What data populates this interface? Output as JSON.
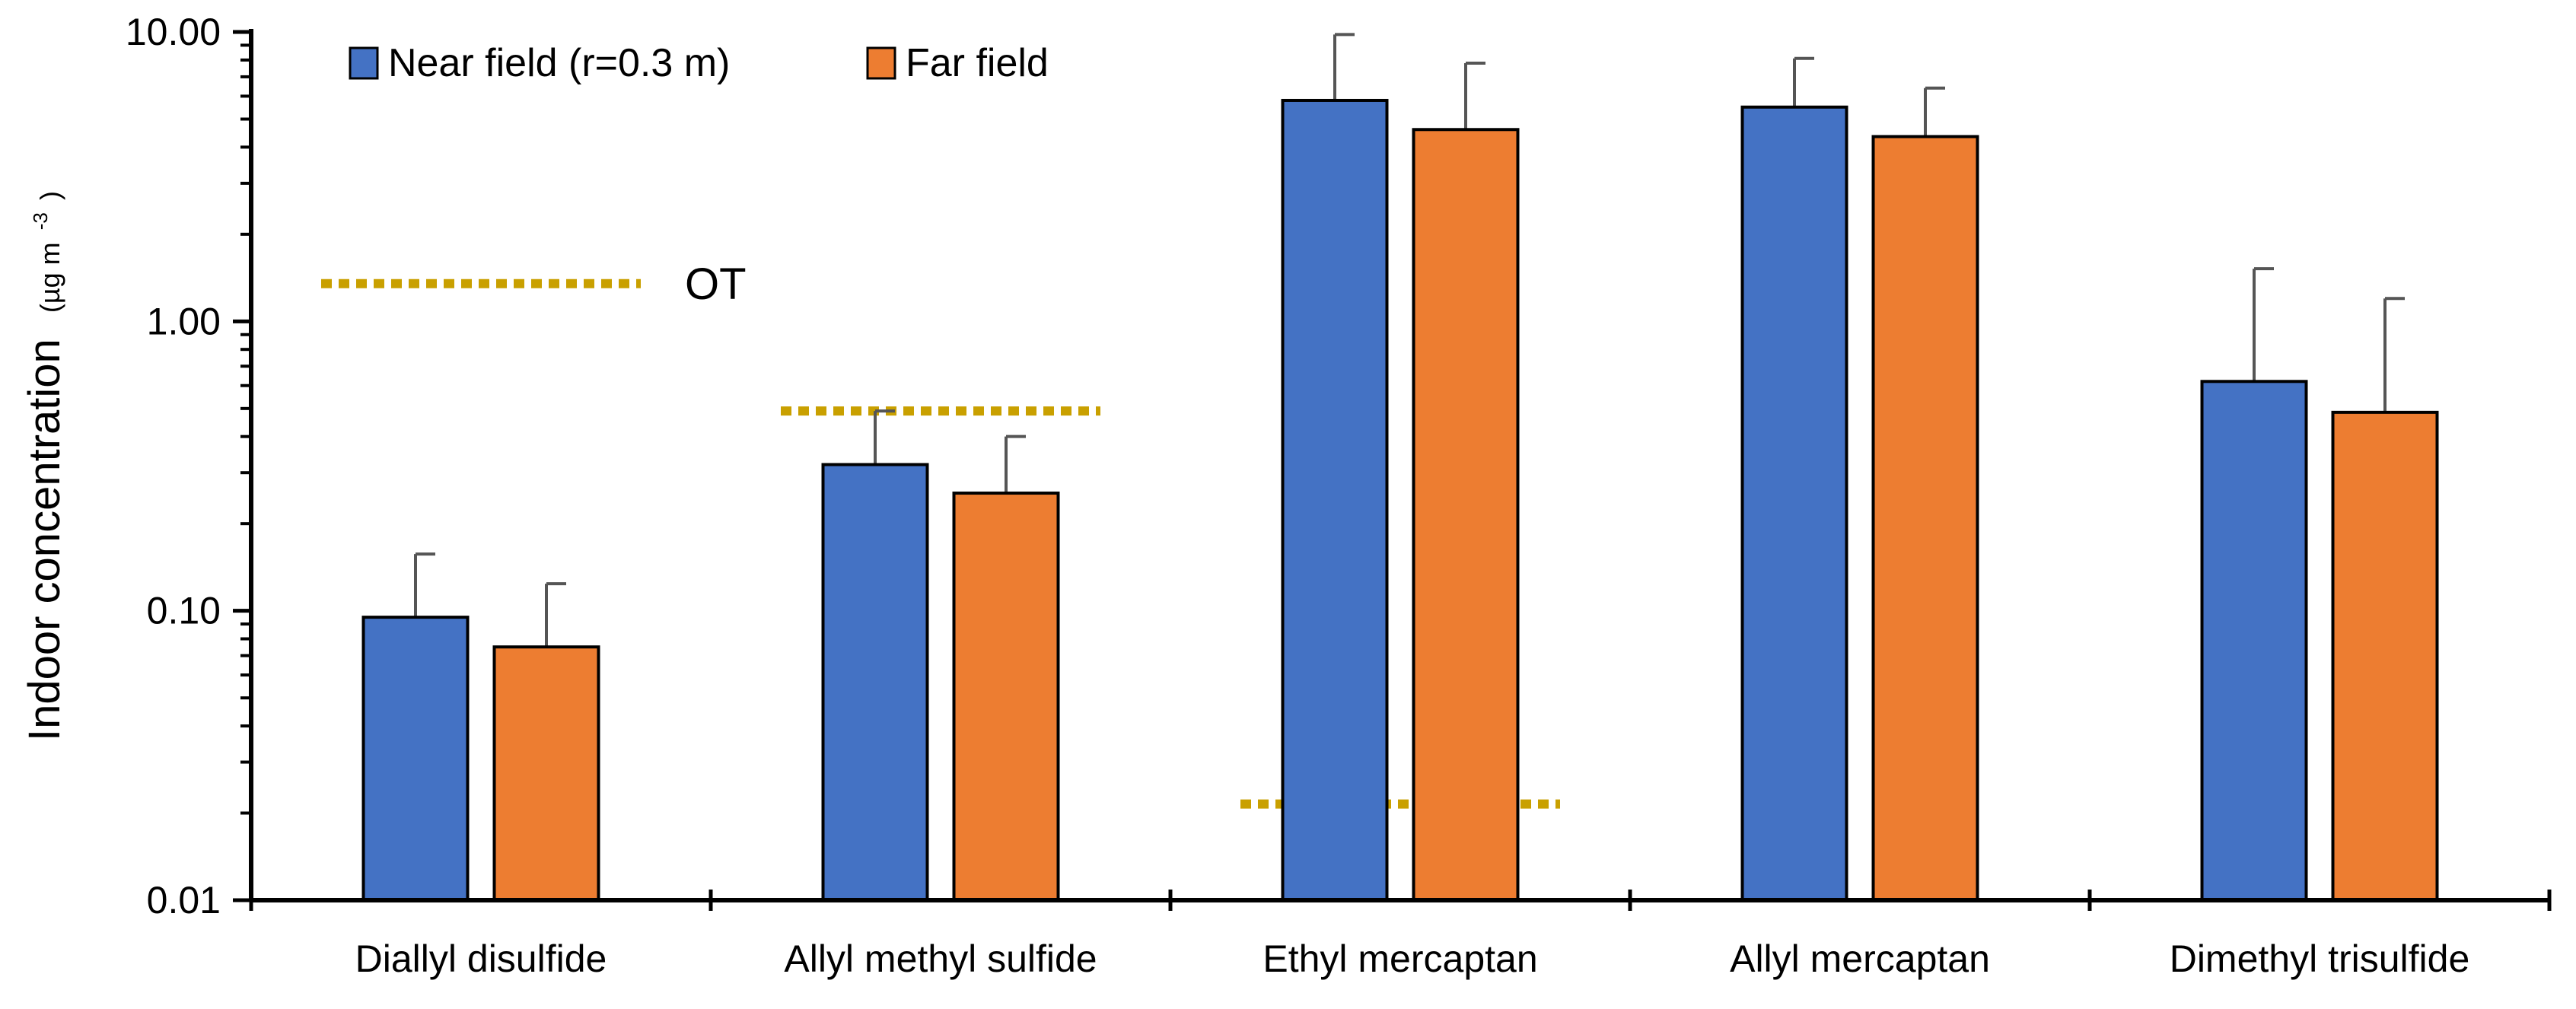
{
  "chart_data": {
    "type": "bar",
    "yscale": "log",
    "ylim": [
      0.01,
      10
    ],
    "yticks": [
      "0.01",
      "0.10",
      "1.00",
      "10.00"
    ],
    "ylabel": "Indoor concentration",
    "ylabel_unit_prefix": "(µg m",
    "ylabel_unit_sup": "-3",
    "ylabel_unit_suffix": ")",
    "xlabel": "",
    "categories": [
      "Diallyl disulfide",
      "Allyl methyl sulfide",
      "Ethyl mercaptan",
      "Allyl mercaptan",
      "Dimethyl trisulfide"
    ],
    "series": [
      {
        "name": "Near field (r=0.3 m)",
        "color": "#4472C4",
        "values": [
          0.095,
          0.32,
          5.8,
          5.5,
          0.62
        ],
        "errors_upper": [
          0.157,
          0.49,
          9.8,
          8.1,
          1.52
        ]
      },
      {
        "name": "Far field",
        "color": "#ED7D31",
        "values": [
          0.075,
          0.255,
          4.6,
          4.35,
          0.485
        ],
        "errors_upper": [
          0.124,
          0.4,
          7.8,
          6.4,
          1.2
        ]
      }
    ],
    "odor_thresholds": [
      {
        "category": "Diallyl disulfide",
        "value": 1.35
      },
      {
        "category": "Allyl methyl sulfide",
        "value": 0.49
      },
      {
        "category": "Ethyl mercaptan",
        "value": 0.0215
      }
    ],
    "odor_threshold_label": "OT",
    "odor_threshold_color": "#C9A000",
    "legend_position": "top-left",
    "grid": false
  }
}
